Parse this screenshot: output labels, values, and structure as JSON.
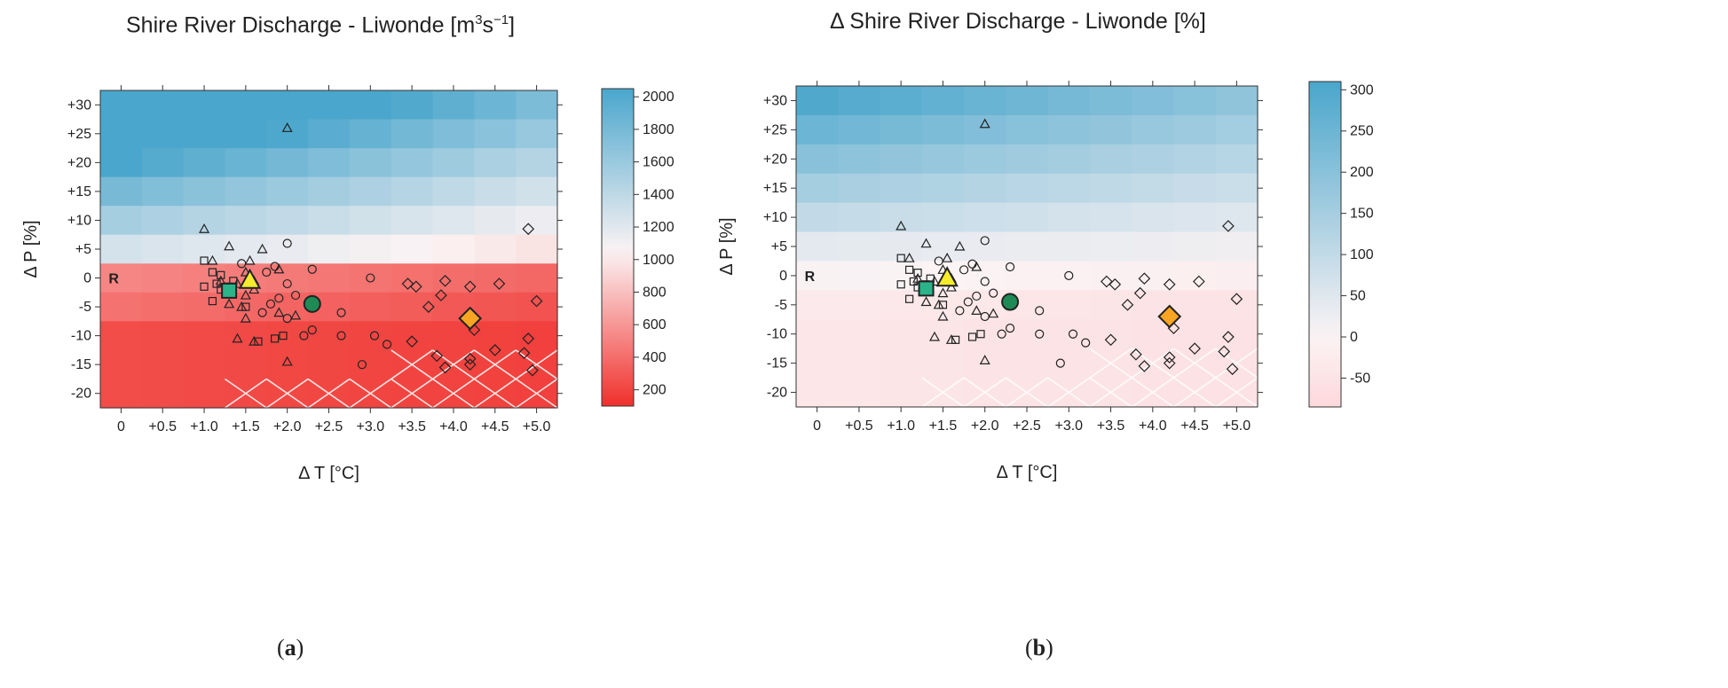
{
  "chart_data": [
    {
      "type": "heatmap",
      "panel": "a",
      "title_text": "Shire River Discharge - Liwonde [m",
      "title_sup": "3",
      "title_mid": "s",
      "title_sup2": "−1",
      "title_end": "]",
      "xlabel": "Δ T [°C]",
      "ylabel": "Δ P [%]",
      "x_ticks": [
        "0",
        "+0.5",
        "+1.0",
        "+1.5",
        "+2.0",
        "+2.5",
        "+3.0",
        "+3.5",
        "+4.0",
        "+4.5",
        "+5.0"
      ],
      "y_ticks": [
        "+30",
        "+25",
        "+20",
        "+15",
        "+10",
        "+5",
        "0",
        "-5",
        "-10",
        "-15",
        "-20"
      ],
      "colorbar_ticks": [
        "2000",
        "1800",
        "1600",
        "1400",
        "1200",
        "1000",
        "800",
        "600",
        "400",
        "200"
      ],
      "colorbar_range": [
        100,
        2050
      ],
      "reference_label": "R",
      "sublabel_open": "(",
      "sublabel_letter": "a",
      "sublabel_close": ")"
    },
    {
      "type": "heatmap",
      "panel": "b",
      "title": "Δ Shire River Discharge - Liwonde [%]",
      "xlabel": "Δ T [°C]",
      "ylabel": "Δ P [%]",
      "x_ticks": [
        "0",
        "+0.5",
        "+1.0",
        "+1.5",
        "+2.0",
        "+2.5",
        "+3.0",
        "+3.5",
        "+4.0",
        "+4.5",
        "+5.0"
      ],
      "y_ticks": [
        "+30",
        "+25",
        "+20",
        "+15",
        "+10",
        "+5",
        "0",
        "-5",
        "-10",
        "-15",
        "-20"
      ],
      "colorbar_ticks": [
        "300",
        "250",
        "200",
        "150",
        "100",
        "50",
        "0",
        "-50"
      ],
      "colorbar_range": [
        -85,
        310
      ],
      "reference_label": "R",
      "sublabel_open": "(",
      "sublabel_letter": "b",
      "sublabel_close": ")"
    }
  ],
  "colors": {
    "red": "#f0302c",
    "white": "#fbf3f4",
    "blue": "#4aa6cc",
    "pink": "#fdd8db",
    "teal_square": "#2bb38a",
    "yellow_triangle": "#f4ec2c",
    "green_circle": "#1f8a55",
    "orange_diamond": "#f7a523"
  }
}
